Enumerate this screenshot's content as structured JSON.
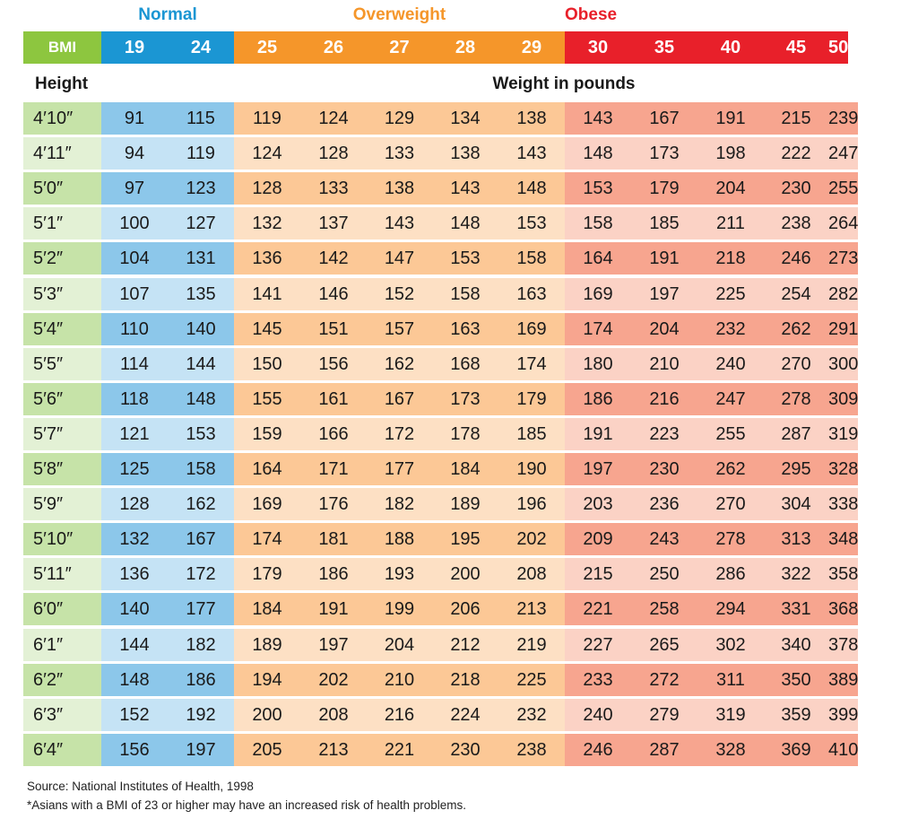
{
  "chart_data": {
    "type": "table",
    "categories": [
      {
        "name": "Normal",
        "color": "#1b96d3",
        "bmi": [
          19,
          24
        ]
      },
      {
        "name": "Overweight",
        "color": "#f5962a",
        "bmi": [
          25,
          26,
          27,
          28,
          29
        ]
      },
      {
        "name": "Obese",
        "color": "#e8202a",
        "bmi": [
          30,
          35,
          40,
          45,
          50
        ]
      }
    ],
    "bmi_label": "BMI",
    "bmi_values": [
      "19",
      "24",
      "25",
      "26",
      "27",
      "28",
      "29",
      "30",
      "35",
      "40",
      "45",
      "50"
    ],
    "height_label": "Height",
    "weight_label": "Weight in pounds",
    "rows": [
      {
        "height": "4′10″",
        "weights": [
          91,
          115,
          119,
          124,
          129,
          134,
          138,
          143,
          167,
          191,
          215,
          239
        ]
      },
      {
        "height": "4′11″",
        "weights": [
          94,
          119,
          124,
          128,
          133,
          138,
          143,
          148,
          173,
          198,
          222,
          247
        ]
      },
      {
        "height": "5′0″",
        "weights": [
          97,
          123,
          128,
          133,
          138,
          143,
          148,
          153,
          179,
          204,
          230,
          255
        ]
      },
      {
        "height": "5′1″",
        "weights": [
          100,
          127,
          132,
          137,
          143,
          148,
          153,
          158,
          185,
          211,
          238,
          264
        ]
      },
      {
        "height": "5′2″",
        "weights": [
          104,
          131,
          136,
          142,
          147,
          153,
          158,
          164,
          191,
          218,
          246,
          273
        ]
      },
      {
        "height": "5′3″",
        "weights": [
          107,
          135,
          141,
          146,
          152,
          158,
          163,
          169,
          197,
          225,
          254,
          282
        ]
      },
      {
        "height": "5′4″",
        "weights": [
          110,
          140,
          145,
          151,
          157,
          163,
          169,
          174,
          204,
          232,
          262,
          291
        ]
      },
      {
        "height": "5′5″",
        "weights": [
          114,
          144,
          150,
          156,
          162,
          168,
          174,
          180,
          210,
          240,
          270,
          300
        ]
      },
      {
        "height": "5′6″",
        "weights": [
          118,
          148,
          155,
          161,
          167,
          173,
          179,
          186,
          216,
          247,
          278,
          309
        ]
      },
      {
        "height": "5′7″",
        "weights": [
          121,
          153,
          159,
          166,
          172,
          178,
          185,
          191,
          223,
          255,
          287,
          319
        ]
      },
      {
        "height": "5′8″",
        "weights": [
          125,
          158,
          164,
          171,
          177,
          184,
          190,
          197,
          230,
          262,
          295,
          328
        ]
      },
      {
        "height": "5′9″",
        "weights": [
          128,
          162,
          169,
          176,
          182,
          189,
          196,
          203,
          236,
          270,
          304,
          338
        ]
      },
      {
        "height": "5′10″",
        "weights": [
          132,
          167,
          174,
          181,
          188,
          195,
          202,
          209,
          243,
          278,
          313,
          348
        ]
      },
      {
        "height": "5′11″",
        "weights": [
          136,
          172,
          179,
          186,
          193,
          200,
          208,
          215,
          250,
          286,
          322,
          358
        ]
      },
      {
        "height": "6′0″",
        "weights": [
          140,
          177,
          184,
          191,
          199,
          206,
          213,
          221,
          258,
          294,
          331,
          368
        ]
      },
      {
        "height": "6′1″",
        "weights": [
          144,
          182,
          189,
          197,
          204,
          212,
          219,
          227,
          265,
          302,
          340,
          378
        ]
      },
      {
        "height": "6′2″",
        "weights": [
          148,
          186,
          194,
          202,
          210,
          218,
          225,
          233,
          272,
          311,
          350,
          389
        ]
      },
      {
        "height": "6′3″",
        "weights": [
          152,
          192,
          200,
          208,
          216,
          224,
          232,
          240,
          279,
          319,
          359,
          399
        ]
      },
      {
        "height": "6′4″",
        "weights": [
          156,
          197,
          205,
          213,
          221,
          230,
          238,
          246,
          287,
          328,
          369,
          410
        ]
      }
    ],
    "source": "Source: National Institutes of Health, 1998",
    "footnote": "*Asians with a BMI of 23 or higher may have an increased risk of health problems."
  }
}
